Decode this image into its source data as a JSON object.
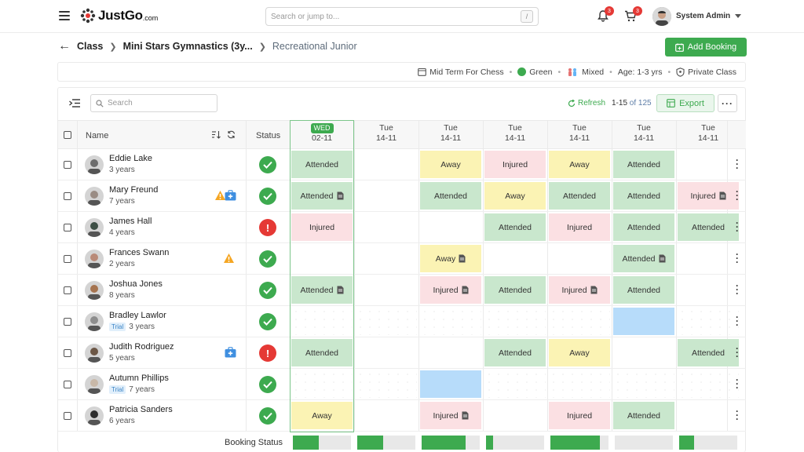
{
  "header": {
    "logo_text": "JustGo",
    "logo_suffix": ".com",
    "search_placeholder": "Search or jump to...",
    "search_shortcut": "/",
    "notifications_count": "3",
    "cart_count": "3",
    "user_name": "System Admin"
  },
  "breadcrumb": {
    "items": [
      "Class",
      "Mini Stars Gymnastics (3y...",
      "Recreational Junior"
    ]
  },
  "actions": {
    "add_booking": "Add Booking"
  },
  "class_info": {
    "term": "Mid Term For Chess",
    "color_name": "Green",
    "color": "#3daa4f",
    "gender": "Mixed",
    "age": "Age: 1-3 yrs",
    "class_type": "Private Class"
  },
  "toolbar": {
    "search_placeholder": "Search",
    "refresh": "Refresh",
    "range": "1-15",
    "of_total": "of 125",
    "export": "Export"
  },
  "table": {
    "name_header": "Name",
    "status_header": "Status",
    "dates": [
      {
        "day": "WED",
        "date": "02-11",
        "highlight": true
      },
      {
        "day": "Tue",
        "date": "14-11"
      },
      {
        "day": "Tue",
        "date": "14-11"
      },
      {
        "day": "Tue",
        "date": "14-11"
      },
      {
        "day": "Tue",
        "date": "14-11"
      },
      {
        "day": "Tue",
        "date": "14-11"
      },
      {
        "day": "Tue",
        "date": "14-11"
      }
    ],
    "rows": [
      {
        "name": "Eddie Lake",
        "age": "3 years",
        "trial": "",
        "status": "ok",
        "cells": [
          {
            "t": "Attended",
            "k": "att"
          },
          {
            "t": "",
            "k": ""
          },
          {
            "t": "Away",
            "k": "away"
          },
          {
            "t": "Injured",
            "k": "inj"
          },
          {
            "t": "Away",
            "k": "away"
          },
          {
            "t": "Attended",
            "k": "att"
          },
          {
            "t": "",
            "k": ""
          }
        ]
      },
      {
        "name": "Mary Freund",
        "age": "7 years",
        "trial": "",
        "status": "ok",
        "warn": true,
        "med": true,
        "cells": [
          {
            "t": "Attended",
            "k": "att",
            "doc": true
          },
          {
            "t": "",
            "k": ""
          },
          {
            "t": "Attended",
            "k": "att"
          },
          {
            "t": "Away",
            "k": "away"
          },
          {
            "t": "Attended",
            "k": "att"
          },
          {
            "t": "Attended",
            "k": "att"
          },
          {
            "t": "Injured",
            "k": "inj",
            "doc": true
          }
        ]
      },
      {
        "name": "James Hall",
        "age": "4 years",
        "trial": "",
        "status": "alert",
        "cells": [
          {
            "t": "Injured",
            "k": "inj"
          },
          {
            "t": "",
            "k": ""
          },
          {
            "t": "",
            "k": ""
          },
          {
            "t": "Attended",
            "k": "att"
          },
          {
            "t": "Injured",
            "k": "inj"
          },
          {
            "t": "Attended",
            "k": "att"
          },
          {
            "t": "Attended",
            "k": "att"
          }
        ]
      },
      {
        "name": "Frances Swann",
        "age": "2 years",
        "trial": "",
        "status": "ok",
        "warn": true,
        "cells": [
          {
            "t": "",
            "k": ""
          },
          {
            "t": "",
            "k": ""
          },
          {
            "t": "Away",
            "k": "away",
            "doc": true
          },
          {
            "t": "",
            "k": ""
          },
          {
            "t": "",
            "k": ""
          },
          {
            "t": "Attended",
            "k": "att",
            "doc": true
          },
          {
            "t": "",
            "k": ""
          }
        ]
      },
      {
        "name": "Joshua Jones",
        "age": "8 years",
        "trial": "",
        "status": "ok",
        "cells": [
          {
            "t": "Attended",
            "k": "att",
            "doc": true
          },
          {
            "t": "",
            "k": ""
          },
          {
            "t": "Injured",
            "k": "inj",
            "doc": true
          },
          {
            "t": "Attended",
            "k": "att"
          },
          {
            "t": "Injured",
            "k": "inj",
            "doc": true
          },
          {
            "t": "Attended",
            "k": "att"
          },
          {
            "t": "",
            "k": ""
          }
        ]
      },
      {
        "name": "Bradley Lawlor",
        "age": "3 years",
        "trial": "Trial",
        "status": "ok",
        "cells": [
          {
            "t": "",
            "k": "dots"
          },
          {
            "t": "",
            "k": "dots"
          },
          {
            "t": "",
            "k": "dots"
          },
          {
            "t": "",
            "k": "dots"
          },
          {
            "t": "",
            "k": "dots"
          },
          {
            "t": "",
            "k": "blue"
          },
          {
            "t": "",
            "k": "dots"
          }
        ]
      },
      {
        "name": "Judith Rodriguez",
        "age": "5 years",
        "trial": "",
        "status": "alert",
        "med": true,
        "cells": [
          {
            "t": "Attended",
            "k": "att"
          },
          {
            "t": "",
            "k": ""
          },
          {
            "t": "",
            "k": ""
          },
          {
            "t": "Attended",
            "k": "att"
          },
          {
            "t": "Away",
            "k": "away"
          },
          {
            "t": "",
            "k": ""
          },
          {
            "t": "Attended",
            "k": "att"
          }
        ]
      },
      {
        "name": "Autumn Phillips",
        "age": "7 years",
        "trial": "Trial",
        "status": "ok",
        "cells": [
          {
            "t": "",
            "k": "dots"
          },
          {
            "t": "",
            "k": "dots"
          },
          {
            "t": "",
            "k": "blue"
          },
          {
            "t": "",
            "k": "dots"
          },
          {
            "t": "",
            "k": "dots"
          },
          {
            "t": "",
            "k": "dots"
          },
          {
            "t": "",
            "k": "dots"
          }
        ]
      },
      {
        "name": "Patricia Sanders",
        "age": "6 years",
        "trial": "",
        "status": "ok",
        "cells": [
          {
            "t": "Away",
            "k": "away"
          },
          {
            "t": "",
            "k": ""
          },
          {
            "t": "Injured",
            "k": "inj",
            "doc": true
          },
          {
            "t": "",
            "k": ""
          },
          {
            "t": "Injured",
            "k": "inj"
          },
          {
            "t": "Attended",
            "k": "att"
          },
          {
            "t": "",
            "k": ""
          }
        ]
      }
    ],
    "booking_status_label": "Booking Status",
    "booking_fill": [
      0.45,
      0.45,
      0.75,
      0.12,
      0.85,
      0.0,
      0.25
    ]
  }
}
